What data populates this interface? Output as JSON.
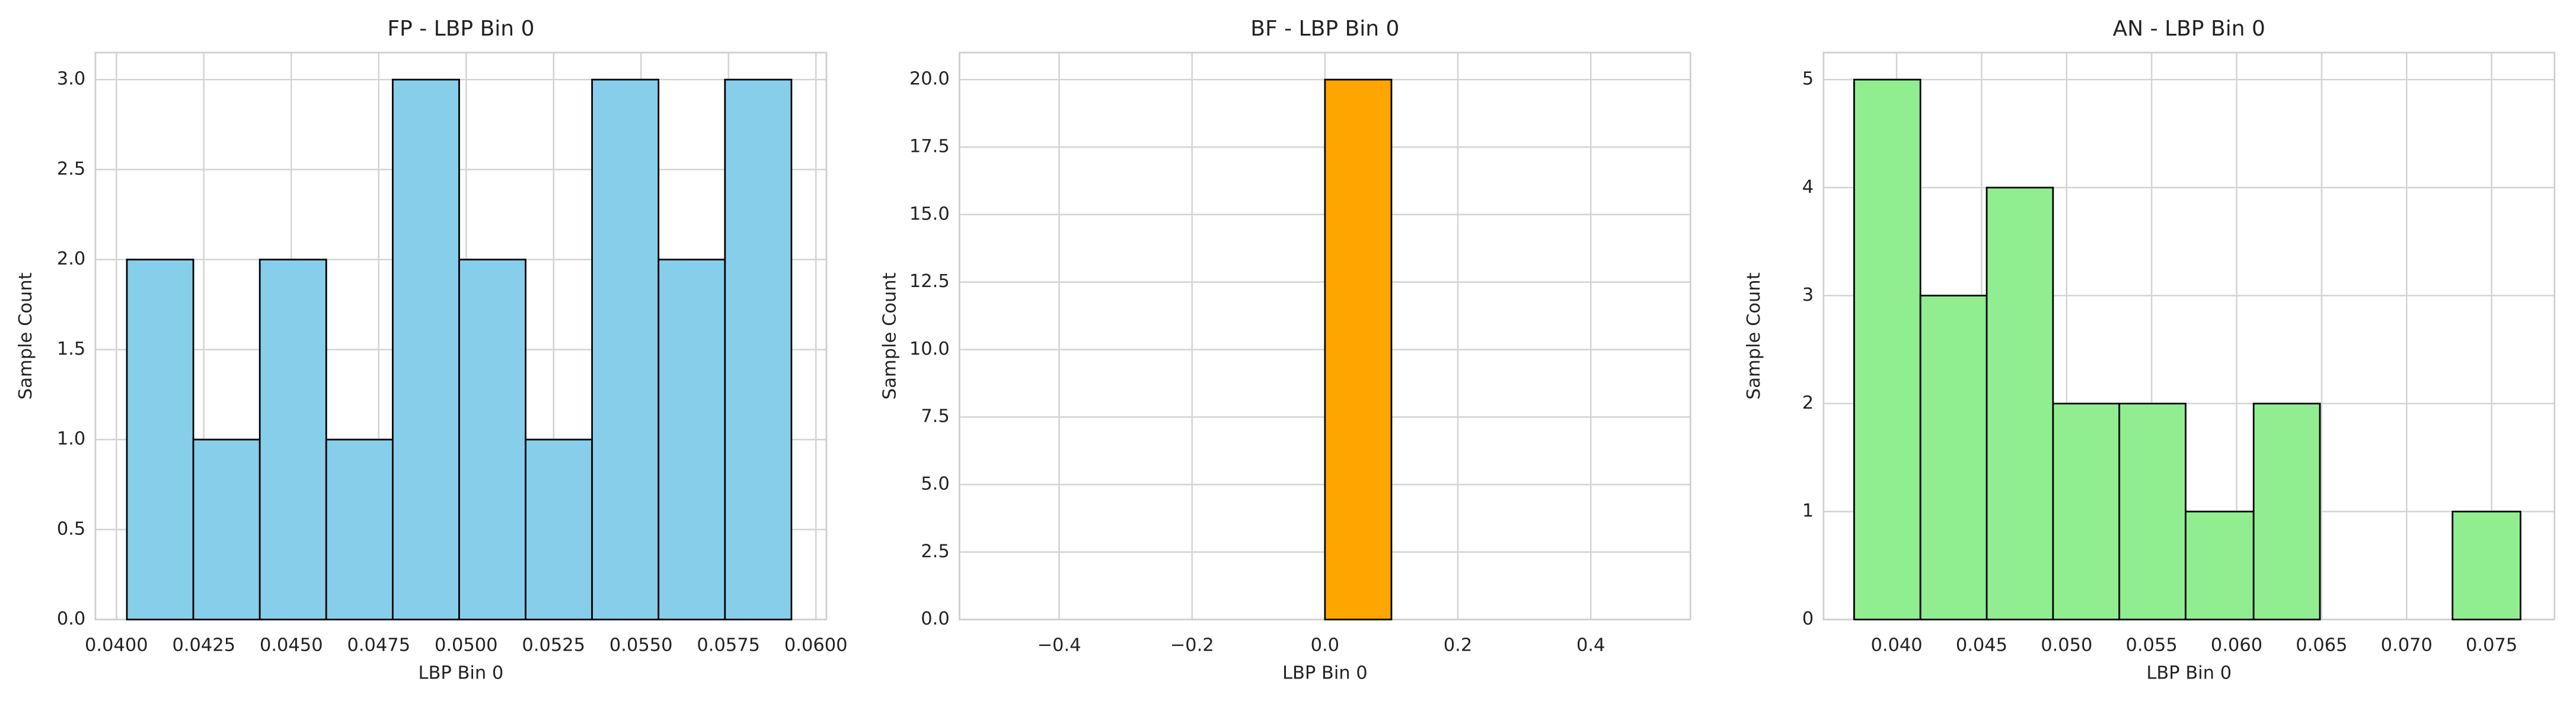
{
  "chart_data": [
    {
      "type": "histogram",
      "title": "FP - LBP Bin 0",
      "xlabel": "LBP Bin 0",
      "ylabel": "Sample Count",
      "bins": [
        0.0403,
        0.0422,
        0.0441,
        0.046,
        0.0479,
        0.0498,
        0.0517,
        0.0536,
        0.0555,
        0.0574,
        0.0593
      ],
      "counts": [
        2,
        1,
        2,
        1,
        3,
        2,
        1,
        3,
        2,
        3
      ],
      "color": "#87ceeb",
      "xlim": [
        0.0394,
        0.0603
      ],
      "xticks": [
        {
          "value": 0.04,
          "label": "0.0400"
        },
        {
          "value": 0.0425,
          "label": "0.0425"
        },
        {
          "value": 0.045,
          "label": "0.0450"
        },
        {
          "value": 0.0475,
          "label": "0.0475"
        },
        {
          "value": 0.05,
          "label": "0.0500"
        },
        {
          "value": 0.0525,
          "label": "0.0525"
        },
        {
          "value": 0.055,
          "label": "0.0550"
        },
        {
          "value": 0.0575,
          "label": "0.0575"
        },
        {
          "value": 0.06,
          "label": "0.0600"
        }
      ],
      "ylim": [
        0,
        3.15
      ],
      "yticks": [
        {
          "value": 0,
          "label": "0.0"
        },
        0.5,
        {
          "value": 1,
          "label": "1.0"
        },
        1.5,
        {
          "value": 2,
          "label": "2.0"
        },
        2.5,
        {
          "value": 3,
          "label": "3.0"
        }
      ],
      "grid": true
    },
    {
      "type": "histogram",
      "title": "BF - LBP Bin 0",
      "xlabel": "LBP Bin 0",
      "ylabel": "Sample Count",
      "bins": [
        -0.5,
        -0.4,
        -0.3,
        -0.2,
        -0.1,
        0,
        0.1,
        0.2,
        0.3,
        0.4,
        0.5
      ],
      "counts": [
        0,
        0,
        0,
        0,
        0,
        20,
        0,
        0,
        0,
        0
      ],
      "color": "#ffa500",
      "xlim": [
        -0.55,
        0.55
      ],
      "xticks": [
        {
          "value": -0.4,
          "label": "−0.4"
        },
        {
          "value": -0.2,
          "label": "−0.2"
        },
        {
          "value": 0,
          "label": "0.0"
        },
        0.2,
        0.4
      ],
      "ylim": [
        0,
        21
      ],
      "yticks": [
        {
          "value": 0,
          "label": "0.0"
        },
        2.5,
        {
          "value": 5,
          "label": "5.0"
        },
        7.5,
        {
          "value": 10,
          "label": "10.0"
        },
        12.5,
        {
          "value": 15,
          "label": "15.0"
        },
        17.5,
        {
          "value": 20,
          "label": "20.0"
        }
      ],
      "grid": true
    },
    {
      "type": "histogram",
      "title": "AN - LBP Bin 0",
      "xlabel": "LBP Bin 0",
      "ylabel": "Sample Count",
      "bins": [
        0.0375,
        0.0414,
        0.0453,
        0.0492,
        0.0531,
        0.057,
        0.061,
        0.0649,
        0.0688,
        0.0727,
        0.0767
      ],
      "counts": [
        5,
        3,
        4,
        2,
        2,
        1,
        2,
        0,
        0,
        1
      ],
      "color": "#90ee90",
      "xlim": [
        0.0357,
        0.0787
      ],
      "xticks": [
        {
          "value": 0.04,
          "label": "0.040"
        },
        0.045,
        {
          "value": 0.05,
          "label": "0.050"
        },
        0.055,
        {
          "value": 0.06,
          "label": "0.060"
        },
        0.065,
        {
          "value": 0.07,
          "label": "0.070"
        },
        0.075
      ],
      "ylim": [
        0,
        5.25
      ],
      "yticks": [
        0,
        1,
        2,
        3,
        4,
        5
      ],
      "grid": true
    }
  ]
}
